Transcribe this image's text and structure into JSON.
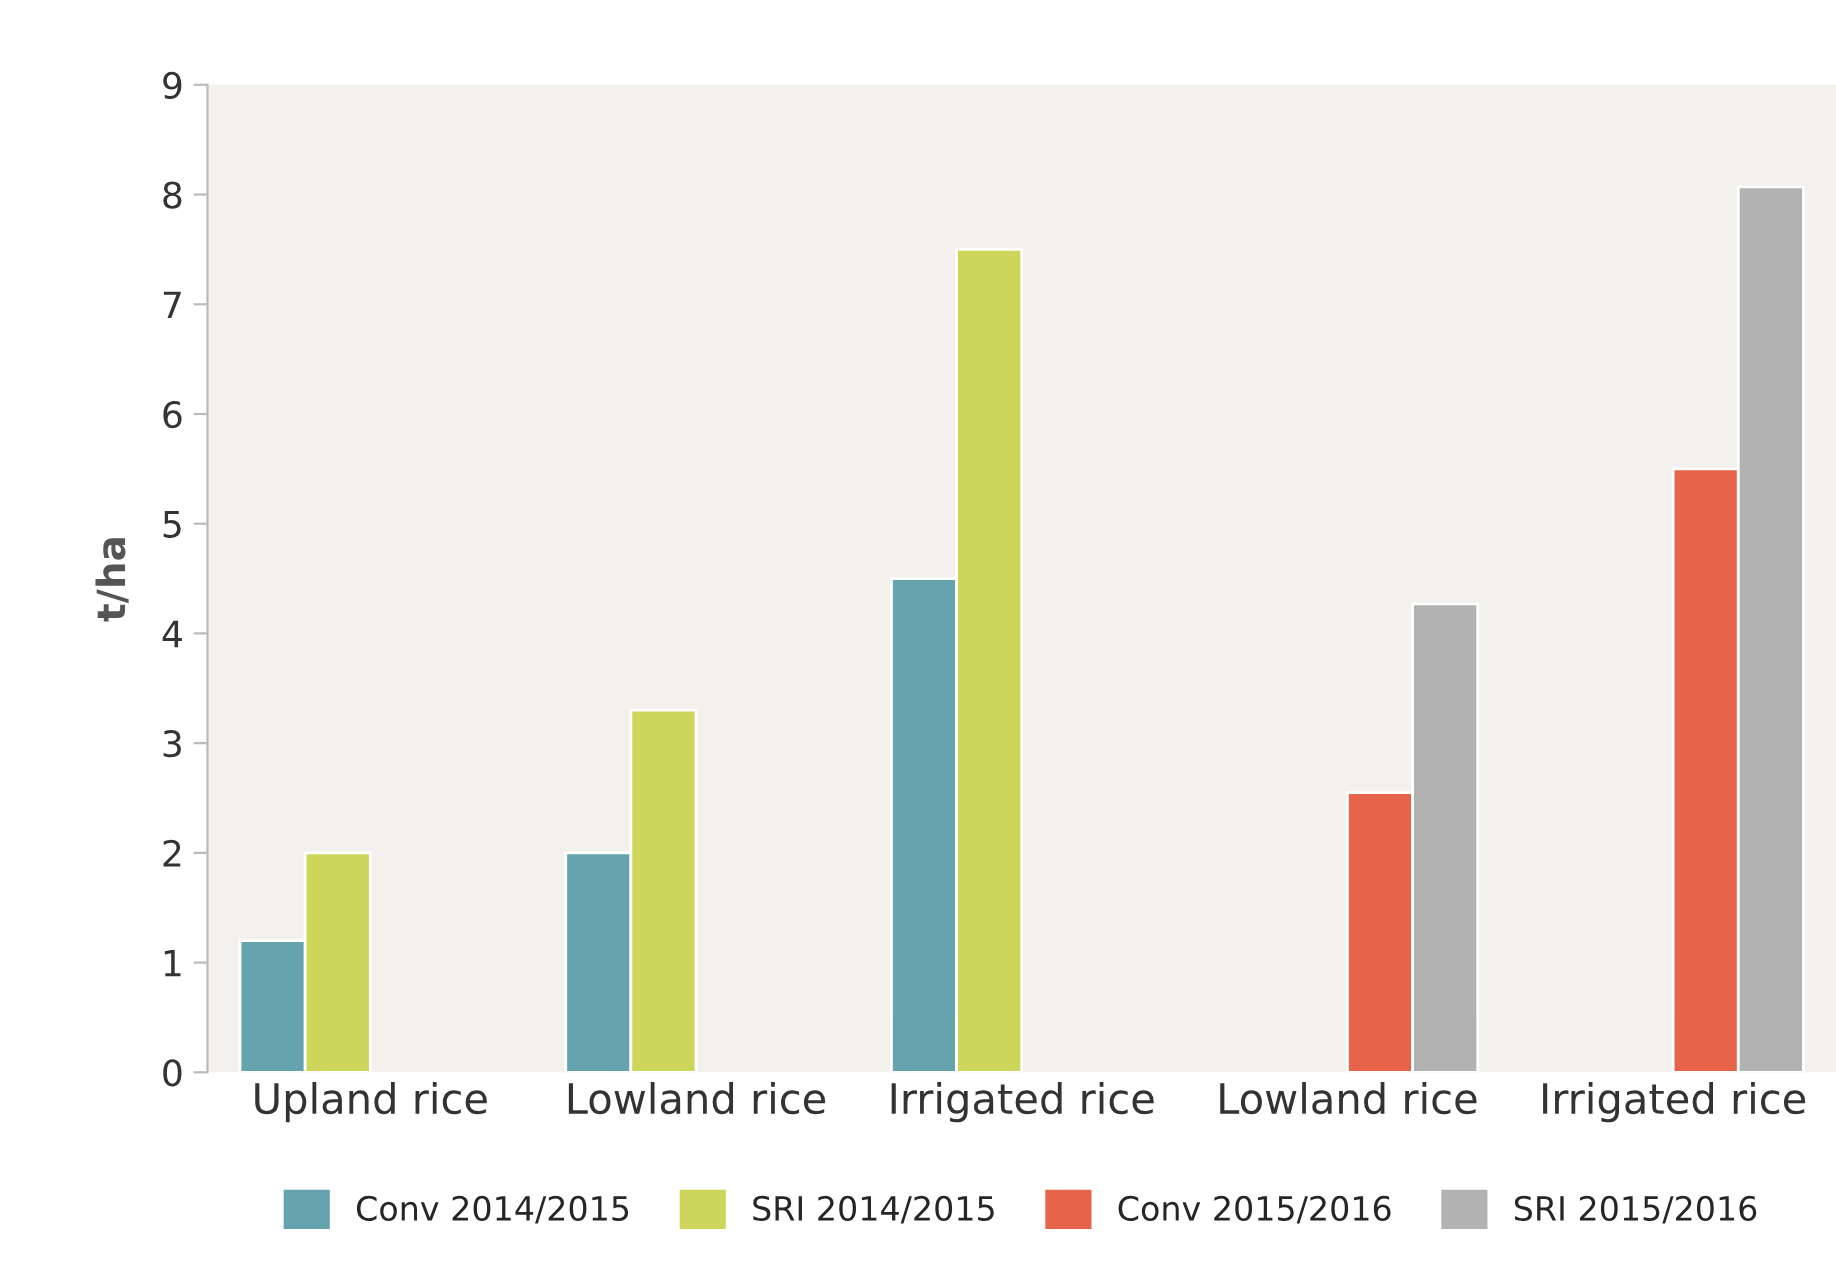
{
  "chart_data": {
    "type": "bar",
    "ylabel": "t/ha",
    "categories": [
      "Upland rice",
      "Lowland rice",
      "Irrigated rice",
      "Lowland rice",
      "Irrigated rice"
    ],
    "series": [
      {
        "name": "Conv 2014/2015",
        "color": "#65a3ae",
        "values": [
          1.2,
          2.0,
          4.5,
          null,
          null
        ]
      },
      {
        "name": "SRI 2014/2015",
        "color": "#cdd65a",
        "values": [
          2.0,
          3.3,
          7.5,
          null,
          null
        ]
      },
      {
        "name": "Conv 2015/2016",
        "color": "#e5644a",
        "values": [
          null,
          null,
          null,
          2.55,
          5.5
        ]
      },
      {
        "name": "SRI 2015/2016",
        "color": "#b2b2b2",
        "values": [
          null,
          null,
          null,
          4.27,
          8.07
        ]
      }
    ],
    "ylim": [
      0,
      9
    ],
    "yticks": [
      0,
      1,
      2,
      3,
      4,
      5,
      6,
      7,
      8,
      9
    ],
    "grid": false,
    "legend": "bottom"
  }
}
